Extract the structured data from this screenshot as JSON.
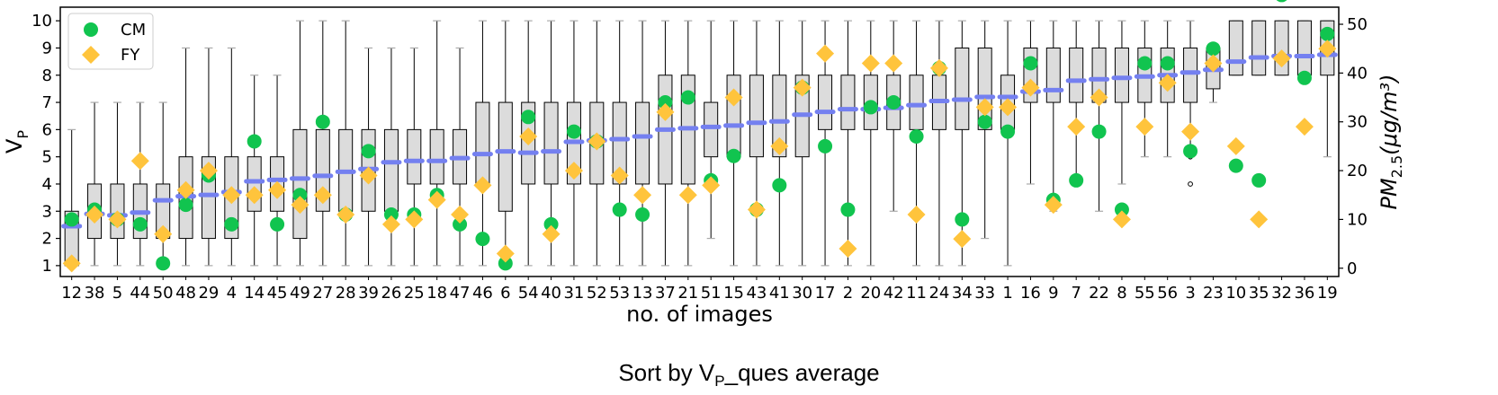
{
  "caption": {
    "prefix": "Sort by V",
    "sub": "P",
    "suffix": "_ques average"
  },
  "chart_data": {
    "type": "box",
    "xlabel": "no. of images",
    "ylabel_left": {
      "base": "V",
      "sub": "P"
    },
    "ylabel_right": {
      "base": "PM",
      "sub": "2.5",
      "unit": "(μg/m³)"
    },
    "categories": [
      "12",
      "38",
      "5",
      "44",
      "50",
      "48",
      "29",
      "4",
      "14",
      "45",
      "49",
      "27",
      "28",
      "39",
      "26",
      "25",
      "18",
      "47",
      "46",
      "6",
      "54",
      "40",
      "31",
      "52",
      "53",
      "13",
      "37",
      "21",
      "51",
      "15",
      "43",
      "41",
      "30",
      "17",
      "2",
      "20",
      "42",
      "11",
      "24",
      "34",
      "33",
      "1",
      "16",
      "9",
      "7",
      "22",
      "8",
      "55",
      "56",
      "3",
      "23",
      "10",
      "35",
      "32",
      "36",
      "19"
    ],
    "ylim_left": [
      0.6,
      10.5
    ],
    "yticks_left": [
      1,
      2,
      3,
      4,
      5,
      6,
      7,
      8,
      9,
      10
    ],
    "ylim_right": [
      -1.7,
      53.5
    ],
    "yticks_right": [
      0,
      10,
      20,
      30,
      40,
      50
    ],
    "legend": {
      "position": "top-left",
      "entries": [
        {
          "name": "CM",
          "color": "#11c44f",
          "marker": "circle"
        },
        {
          "name": "FY",
          "color": "#ffc43c",
          "marker": "diamond"
        }
      ]
    },
    "colors": {
      "box_fill": "#dcdcdc",
      "mean": "#7480f0",
      "cap": "#aaaaaa",
      "cm": "#11c44f",
      "fy": "#ffc43c"
    },
    "boxes": [
      {
        "wl": 1,
        "q1": 1,
        "q3": 3,
        "wh": 6
      },
      {
        "wl": 1,
        "q1": 2,
        "q3": 4,
        "wh": 7
      },
      {
        "wl": 1,
        "q1": 2,
        "q3": 4,
        "wh": 7
      },
      {
        "wl": 1,
        "q1": 2,
        "q3": 4,
        "wh": 7
      },
      {
        "wl": 1,
        "q1": 2,
        "q3": 4,
        "wh": 7
      },
      {
        "wl": 1,
        "q1": 2,
        "q3": 5,
        "wh": 9
      },
      {
        "wl": 1,
        "q1": 2,
        "q3": 5,
        "wh": 9
      },
      {
        "wl": 1,
        "q1": 2,
        "q3": 5,
        "wh": 9
      },
      {
        "wl": 1,
        "q1": 3,
        "q3": 5,
        "wh": 8
      },
      {
        "wl": 1,
        "q1": 3,
        "q3": 5,
        "wh": 8
      },
      {
        "wl": 1,
        "q1": 2,
        "q3": 6,
        "wh": 10
      },
      {
        "wl": 1,
        "q1": 3,
        "q3": 6,
        "wh": 10
      },
      {
        "wl": 1,
        "q1": 3,
        "q3": 6,
        "wh": 10
      },
      {
        "wl": 1,
        "q1": 3,
        "q3": 6,
        "wh": 9
      },
      {
        "wl": 1,
        "q1": 3,
        "q3": 6,
        "wh": 9
      },
      {
        "wl": 1,
        "q1": 4,
        "q3": 6,
        "wh": 9
      },
      {
        "wl": 1,
        "q1": 4,
        "q3": 6,
        "wh": 10
      },
      {
        "wl": 1,
        "q1": 4,
        "q3": 6,
        "wh": 9
      },
      {
        "wl": 1,
        "q1": 4,
        "q3": 7,
        "wh": 10
      },
      {
        "wl": 1,
        "q1": 3,
        "q3": 7,
        "wh": 10
      },
      {
        "wl": 1,
        "q1": 4,
        "q3": 7,
        "wh": 10
      },
      {
        "wl": 1,
        "q1": 4,
        "q3": 7,
        "wh": 10
      },
      {
        "wl": 1,
        "q1": 4,
        "q3": 7,
        "wh": 10
      },
      {
        "wl": 1,
        "q1": 4,
        "q3": 7,
        "wh": 10
      },
      {
        "wl": 1,
        "q1": 4,
        "q3": 7,
        "wh": 10
      },
      {
        "wl": 1,
        "q1": 4,
        "q3": 7,
        "wh": 10
      },
      {
        "wl": 1,
        "q1": 4,
        "q3": 8,
        "wh": 10
      },
      {
        "wl": 1,
        "q1": 4,
        "q3": 8,
        "wh": 10
      },
      {
        "wl": 2,
        "q1": 5,
        "q3": 7,
        "wh": 10
      },
      {
        "wl": 1,
        "q1": 5,
        "q3": 8,
        "wh": 10
      },
      {
        "wl": 1,
        "q1": 5,
        "q3": 8,
        "wh": 10
      },
      {
        "wl": 1,
        "q1": 5,
        "q3": 8,
        "wh": 10
      },
      {
        "wl": 1,
        "q1": 5,
        "q3": 8,
        "wh": 10
      },
      {
        "wl": 1,
        "q1": 6,
        "q3": 8,
        "wh": 10
      },
      {
        "wl": 1,
        "q1": 6,
        "q3": 8,
        "wh": 10
      },
      {
        "wl": 1,
        "q1": 6,
        "q3": 8,
        "wh": 10
      },
      {
        "wl": 3,
        "q1": 6,
        "q3": 8,
        "wh": 10
      },
      {
        "wl": 1,
        "q1": 6,
        "q3": 8,
        "wh": 10
      },
      {
        "wl": 1,
        "q1": 6,
        "q3": 8,
        "wh": 10
      },
      {
        "wl": 1,
        "q1": 6,
        "q3": 9,
        "wh": 10
      },
      {
        "wl": 2,
        "q1": 6,
        "q3": 9,
        "wh": 10
      },
      {
        "wl": 1,
        "q1": 6,
        "q3": 8,
        "wh": 10
      },
      {
        "wl": 4,
        "q1": 7,
        "q3": 9,
        "wh": 10
      },
      {
        "wl": 3,
        "q1": 7,
        "q3": 9,
        "wh": 10
      },
      {
        "wl": 4,
        "q1": 7,
        "q3": 9,
        "wh": 10
      },
      {
        "wl": 3,
        "q1": 7,
        "q3": 9,
        "wh": 10
      },
      {
        "wl": 4,
        "q1": 7,
        "q3": 9,
        "wh": 10
      },
      {
        "wl": 5,
        "q1": 7,
        "q3": 9,
        "wh": 10
      },
      {
        "wl": 5,
        "q1": 7,
        "q3": 9,
        "wh": 10
      },
      {
        "wl": 5,
        "q1": 7,
        "q3": 9,
        "wh": 10
      },
      {
        "wl": 7,
        "q1": 7.5,
        "q3": 9,
        "wh": 9
      },
      {
        "wl": 8,
        "q1": 8,
        "q3": 10,
        "wh": 10
      },
      {
        "wl": 8,
        "q1": 8,
        "q3": 10,
        "wh": 10
      },
      {
        "wl": 8,
        "q1": 8,
        "q3": 10,
        "wh": 10
      },
      {
        "wl": 8,
        "q1": 8,
        "q3": 10,
        "wh": 10
      },
      {
        "wl": 5,
        "q1": 8,
        "q3": 10,
        "wh": 10
      }
    ],
    "outliers": [
      {
        "index": 49,
        "values": [
          5,
          4
        ]
      }
    ],
    "means": [
      2.45,
      2.9,
      2.85,
      2.95,
      3.4,
      3.55,
      3.6,
      3.7,
      4.1,
      4.15,
      4.2,
      4.3,
      4.45,
      4.55,
      4.8,
      4.85,
      4.85,
      4.95,
      5.1,
      5.2,
      5.15,
      5.2,
      5.55,
      5.6,
      5.65,
      5.75,
      6.0,
      6.05,
      6.1,
      6.15,
      6.25,
      6.3,
      6.55,
      6.65,
      6.75,
      6.75,
      6.8,
      6.9,
      7.05,
      7.1,
      7.2,
      7.2,
      7.4,
      7.45,
      7.8,
      7.85,
      7.9,
      7.95,
      8.0,
      8.1,
      8.2,
      8.5,
      8.65,
      8.7,
      8.7,
      8.75
    ],
    "cm_values": [
      10,
      12,
      10,
      9,
      1,
      13,
      19,
      9,
      26,
      9,
      15,
      30,
      11,
      24,
      11,
      11,
      15,
      9,
      6,
      1,
      31,
      9,
      28,
      26,
      12,
      11,
      34,
      35,
      18,
      23,
      12,
      17,
      37,
      25,
      12,
      33,
      34,
      27,
      41,
      10,
      30,
      28,
      42,
      14,
      18,
      28,
      12,
      42,
      42,
      24,
      45,
      21,
      18,
      56,
      39,
      48
    ],
    "fy_values": [
      1,
      11,
      10,
      22,
      7,
      16,
      20,
      15,
      15,
      16,
      13,
      15,
      11,
      19,
      9,
      10,
      14,
      11,
      17,
      3,
      27,
      7,
      20,
      26,
      19,
      15,
      32,
      15,
      17,
      35,
      12,
      25,
      37,
      44,
      4,
      42,
      42,
      11,
      41,
      6,
      33,
      33,
      37,
      13,
      29,
      35,
      10,
      29,
      38,
      28,
      42,
      25,
      10,
      43,
      29,
      45
    ]
  }
}
